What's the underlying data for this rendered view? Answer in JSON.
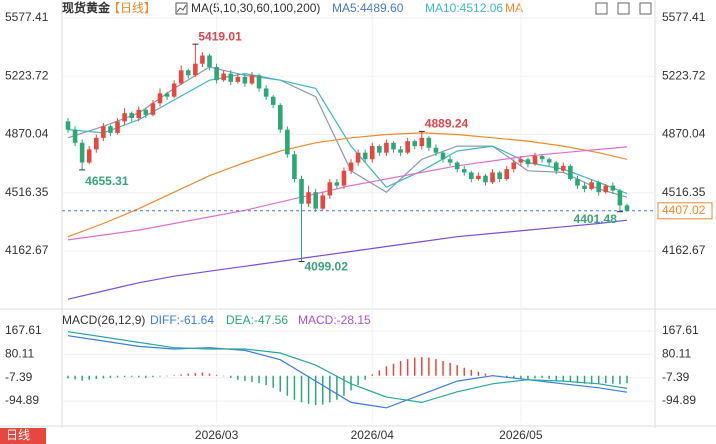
{
  "header": {
    "title": "现货黄金",
    "period": "【日线】"
  },
  "badge": "日线",
  "chart_data": [
    {
      "type": "candlestick",
      "legend": [
        "MA(5,10,30,60,100,200)",
        "MA5:4489.60",
        "MA10:4512.06",
        "MA"
      ],
      "categories": [
        null,
        null,
        null,
        null,
        null,
        null,
        null,
        null,
        null,
        null,
        null,
        null,
        null,
        null,
        null,
        null,
        null,
        null,
        null,
        null,
        null,
        "2026/03",
        null,
        null,
        null,
        null,
        null,
        null,
        null,
        null,
        null,
        null,
        null,
        null,
        null,
        null,
        null,
        null,
        null,
        null,
        null,
        null,
        null,
        "2026/04",
        null,
        null,
        null,
        null,
        null,
        null,
        null,
        null,
        null,
        null,
        null,
        null,
        null,
        null,
        null,
        null,
        null,
        null,
        null,
        null,
        "2026/05",
        null,
        null,
        null,
        null,
        null,
        null,
        null,
        null,
        null,
        null,
        null,
        null,
        null,
        null,
        null
      ],
      "open": [
        4950,
        4900,
        4820,
        4700,
        4780,
        4850,
        4920,
        4880,
        4950,
        5000,
        4970,
        5020,
        4990,
        5060,
        5120,
        5100,
        5180,
        5260,
        5230,
        5300,
        5350,
        5280,
        5200,
        5240,
        5190,
        5220,
        5180,
        5230,
        5150,
        5100,
        5050,
        4900,
        4750,
        4600,
        4450,
        4520,
        4420,
        4500,
        4580,
        4560,
        4650,
        4700,
        4760,
        4720,
        4800,
        4760,
        4820,
        4780,
        4760,
        4830,
        4800,
        4850,
        4790,
        4760,
        4720,
        4700,
        4660,
        4640,
        4600,
        4620,
        4580,
        4640,
        4600,
        4660,
        4700,
        4720,
        4690,
        4740,
        4720,
        4700,
        4650,
        4680,
        4600,
        4560,
        4540,
        4580,
        4520,
        4560,
        4530,
        4440
      ],
      "high": [
        4970,
        4920,
        4840,
        4800,
        4870,
        4940,
        4930,
        4970,
        5030,
        5010,
        5040,
        5030,
        5080,
        5150,
        5130,
        5200,
        5290,
        5270,
        5419.01,
        5370,
        5360,
        5300,
        5260,
        5260,
        5240,
        5240,
        5250,
        5240,
        5170,
        5110,
        5060,
        4920,
        4770,
        4620,
        4560,
        4540,
        4520,
        4600,
        4600,
        4670,
        4720,
        4780,
        4780,
        4820,
        4810,
        4840,
        4830,
        4800,
        4850,
        4840,
        4889.24,
        4860,
        4810,
        4770,
        4740,
        4710,
        4680,
        4650,
        4640,
        4630,
        4660,
        4650,
        4680,
        4720,
        4740,
        4730,
        4760,
        4750,
        4730,
        4710,
        4700,
        4690,
        4620,
        4580,
        4600,
        4590,
        4570,
        4580,
        4540,
        4450
      ],
      "low": [
        4880,
        4800,
        4655.31,
        4690,
        4760,
        4830,
        4860,
        4870,
        4930,
        4950,
        4950,
        4970,
        4980,
        5040,
        5080,
        5090,
        5170,
        5210,
        5220,
        5280,
        5260,
        5180,
        5190,
        5170,
        5180,
        5160,
        5170,
        5130,
        5080,
        5030,
        4880,
        4730,
        4580,
        4099.02,
        4430,
        4400,
        4410,
        4480,
        4540,
        4540,
        4630,
        4680,
        4700,
        4700,
        4740,
        4740,
        4760,
        4740,
        4750,
        4780,
        4780,
        4770,
        4740,
        4700,
        4680,
        4640,
        4620,
        4580,
        4590,
        4560,
        4570,
        4580,
        4590,
        4640,
        4680,
        4670,
        4680,
        4700,
        4680,
        4630,
        4640,
        4590,
        4540,
        4520,
        4530,
        4500,
        4510,
        4510,
        4401.48,
        4402
      ],
      "close": [
        4900,
        4820,
        4700,
        4780,
        4850,
        4920,
        4880,
        4950,
        5000,
        4970,
        5020,
        4990,
        5060,
        5120,
        5100,
        5180,
        5260,
        5230,
        5300,
        5350,
        5280,
        5200,
        5240,
        5190,
        5220,
        5180,
        5230,
        5150,
        5100,
        5050,
        4900,
        4750,
        4600,
        4450,
        4520,
        4420,
        4500,
        4580,
        4560,
        4650,
        4700,
        4760,
        4720,
        4800,
        4760,
        4820,
        4780,
        4760,
        4830,
        4800,
        4850,
        4790,
        4760,
        4720,
        4700,
        4660,
        4640,
        4600,
        4620,
        4580,
        4640,
        4600,
        4660,
        4700,
        4720,
        4690,
        4740,
        4720,
        4700,
        4650,
        4680,
        4600,
        4560,
        4540,
        4580,
        4520,
        4560,
        4530,
        4440,
        4407.02
      ],
      "up_color": "#e8473f",
      "down_color": "#2aa876",
      "series": [
        {
          "color": "#8c9bb0",
          "x": [
            0,
            5,
            10,
            15,
            20,
            25,
            30,
            35,
            40,
            45,
            50,
            55,
            60,
            65,
            70,
            75,
            79
          ],
          "values": [
            4850,
            4920,
            5000,
            5150,
            5280,
            5230,
            5200,
            5100,
            4650,
            4520,
            4720,
            4800,
            4800,
            4650,
            4640,
            4540,
            4489.6
          ]
        },
        {
          "color": "#3fb8c4",
          "x": [
            0,
            5,
            10,
            15,
            20,
            25,
            30,
            35,
            40,
            45,
            50,
            55,
            60,
            65,
            70,
            75,
            79
          ],
          "values": [
            4900,
            4880,
            4960,
            5080,
            5200,
            5240,
            5200,
            5150,
            4800,
            4550,
            4650,
            4770,
            4800,
            4700,
            4660,
            4580,
            4512.06
          ]
        },
        {
          "color": "#f08a2c",
          "x": [
            0,
            5,
            10,
            15,
            20,
            25,
            30,
            35,
            40,
            45,
            50,
            55,
            60,
            65,
            70,
            75,
            79
          ],
          "values": [
            4250,
            4330,
            4420,
            4520,
            4620,
            4700,
            4770,
            4820,
            4850,
            4870,
            4880,
            4870,
            4850,
            4830,
            4800,
            4760,
            4720
          ]
        },
        {
          "color": "#e070d0",
          "x": [
            0,
            5,
            10,
            15,
            20,
            25,
            30,
            35,
            40,
            45,
            50,
            55,
            60,
            65,
            70,
            75,
            79
          ],
          "values": [
            4230,
            4260,
            4290,
            4330,
            4370,
            4410,
            4460,
            4510,
            4560,
            4600,
            4640,
            4680,
            4710,
            4740,
            4760,
            4780,
            4795
          ]
        },
        {
          "color": "#7b4ee0",
          "x": [
            0,
            5,
            10,
            15,
            20,
            25,
            30,
            35,
            40,
            45,
            50,
            55,
            60,
            65,
            70,
            75,
            79
          ],
          "values": [
            3870,
            3920,
            3970,
            4010,
            4040,
            4070,
            4100,
            4130,
            4160,
            4190,
            4220,
            4250,
            4270,
            4290,
            4310,
            4330,
            4350
          ]
        }
      ],
      "ylim": [
        3835,
        5687
      ],
      "yticks": [
        5577.41,
        5223.72,
        4870.04,
        4516.35,
        4162.67
      ],
      "grid": true
    },
    {
      "type": "macd",
      "title": "MACD(26,12,9)",
      "legend": [
        "DIFF:-61.64",
        "DEA:-47.56",
        "MACD:-28.15"
      ],
      "legend_colors": [
        "#3a7be0",
        "#2aa876",
        "#b04fd0"
      ],
      "values": [
        -10,
        -14,
        -18,
        -15,
        -12,
        -10,
        -8,
        -6,
        -5,
        -4,
        -6,
        -8,
        -5,
        -3,
        -2,
        2,
        5,
        8,
        10,
        12,
        8,
        4,
        -2,
        -8,
        -15,
        -20,
        -24,
        -28,
        -35,
        -45,
        -60,
        -75,
        -90,
        -100,
        -105,
        -110,
        -108,
        -100,
        -90,
        -75,
        -55,
        -35,
        -15,
        5,
        20,
        35,
        45,
        55,
        62,
        68,
        70,
        68,
        62,
        55,
        48,
        40,
        30,
        22,
        15,
        8,
        2,
        -4,
        -8,
        -10,
        -12,
        -14,
        -10,
        -8,
        -12,
        -18,
        -20,
        -24,
        -28,
        -30,
        -32,
        -30,
        -28,
        -30,
        -32,
        -28.15
      ],
      "up_color": "#e8473f",
      "down_color": "#2aa876",
      "series": [
        {
          "color": "#3a7be0",
          "x": [
            0,
            5,
            10,
            15,
            20,
            25,
            30,
            35,
            40,
            45,
            50,
            55,
            60,
            65,
            70,
            75,
            79
          ],
          "values": [
            150,
            130,
            110,
            100,
            105,
            95,
            60,
            -20,
            -100,
            -120,
            -70,
            -20,
            0,
            -15,
            -30,
            -45,
            -61.64
          ]
        },
        {
          "color": "#2aa8a0",
          "x": [
            0,
            5,
            10,
            15,
            20,
            25,
            30,
            35,
            40,
            45,
            50,
            55,
            60,
            65,
            70,
            75,
            79
          ],
          "values": [
            165,
            145,
            125,
            105,
            100,
            100,
            85,
            40,
            -30,
            -80,
            -100,
            -60,
            -30,
            -15,
            -20,
            -30,
            -47.56
          ]
        }
      ],
      "ylim": [
        -177,
        235
      ],
      "yticks": [
        167.61,
        80.11,
        -7.39,
        -94.89
      ],
      "grid": true
    }
  ]
}
